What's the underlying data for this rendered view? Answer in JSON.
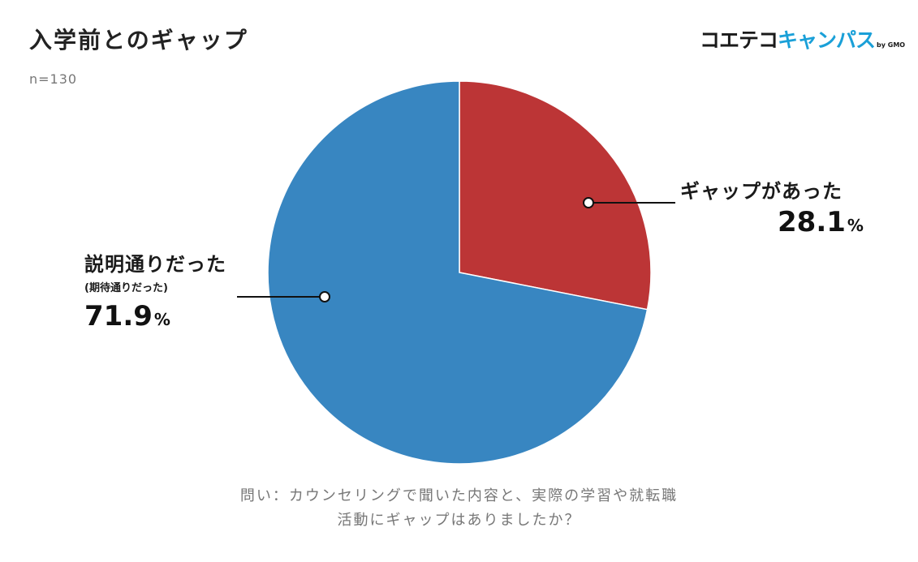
{
  "header": {
    "title": "入学前とのギャップ",
    "sample_size": "n=130"
  },
  "logo": {
    "part1": "コエテコ",
    "part2": "キャンパス",
    "suffix": "by GMO"
  },
  "colors": {
    "gap_slice": "#bc3536",
    "as_expected_slice": "#3886c1"
  },
  "chart_data": {
    "type": "pie",
    "title": "入学前とのギャップ",
    "slices": [
      {
        "label": "ギャップがあった",
        "sublabel": "",
        "value": 28.1,
        "value_text": "28.1",
        "unit": "%",
        "color": "#bc3536"
      },
      {
        "label": "説明通りだった",
        "sublabel": "(期待通りだった)",
        "value": 71.9,
        "value_text": "71.9",
        "unit": "%",
        "color": "#3886c1"
      }
    ]
  },
  "footer": {
    "question_line1": "問い：カウンセリングで聞いた内容と、実際の学習や就転職",
    "question_line2": "活動にギャップはありましたか？"
  }
}
